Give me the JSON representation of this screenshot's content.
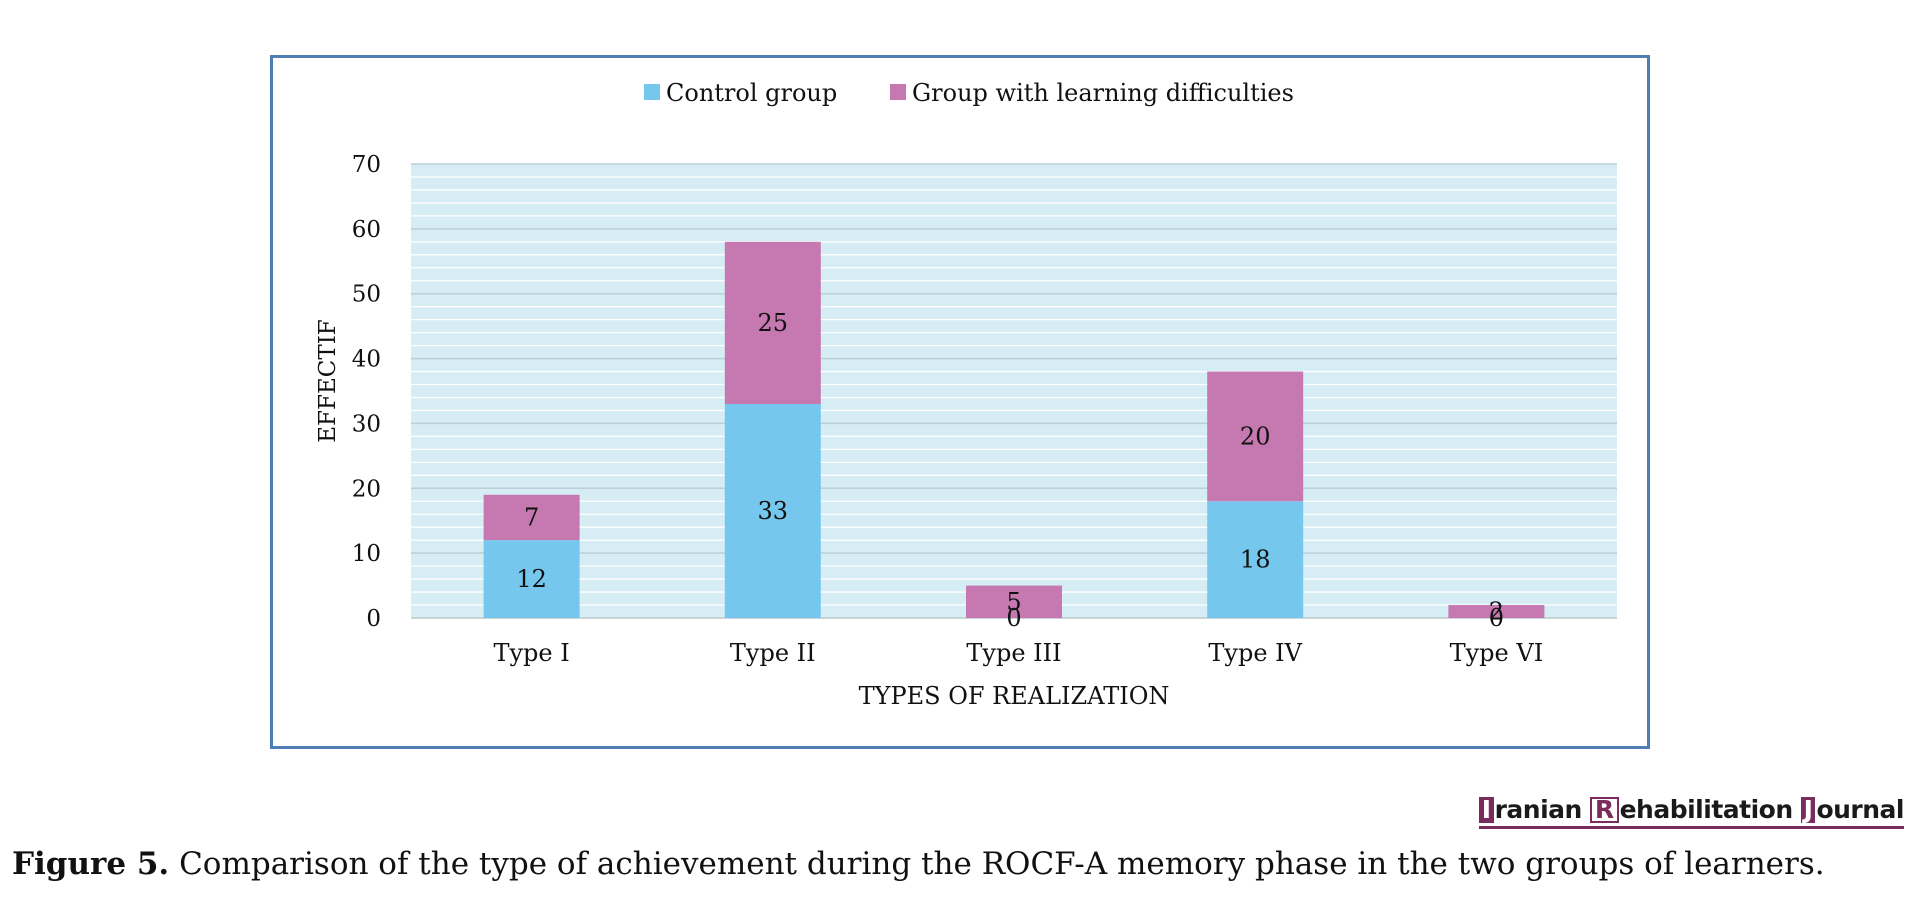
{
  "chart_data": {
    "type": "bar",
    "stacked": true,
    "categories": [
      "Type I",
      "Type II",
      "Type III",
      "Type IV",
      "Type VI"
    ],
    "series": [
      {
        "name": "Control group",
        "color": "#75c7ee",
        "values": [
          12,
          33,
          0,
          18,
          0
        ]
      },
      {
        "name": "Group with learning difficulties",
        "color": "#c679b1",
        "values": [
          7,
          25,
          5,
          20,
          2
        ]
      }
    ],
    "xlabel": "TYPES OF REALIZATION",
    "ylabel": "EFFECTIF",
    "ylim": [
      0,
      70
    ],
    "yticks": [
      0,
      10,
      20,
      30,
      40,
      50,
      60,
      70
    ],
    "legend_position": "top-center",
    "grid": true,
    "plot_background": "#d6edf5",
    "data_labels": true
  },
  "logo": {
    "initial_1": "I",
    "word_1": "ranian",
    "initial_2": "R",
    "word_2": "ehabilitation",
    "initial_3": "J",
    "word_3": "ournal"
  },
  "caption": {
    "label": "Figure 5.",
    "text": "Comparison of the type of achievement during the ROCF-A memory phase in the two groups of learners."
  }
}
